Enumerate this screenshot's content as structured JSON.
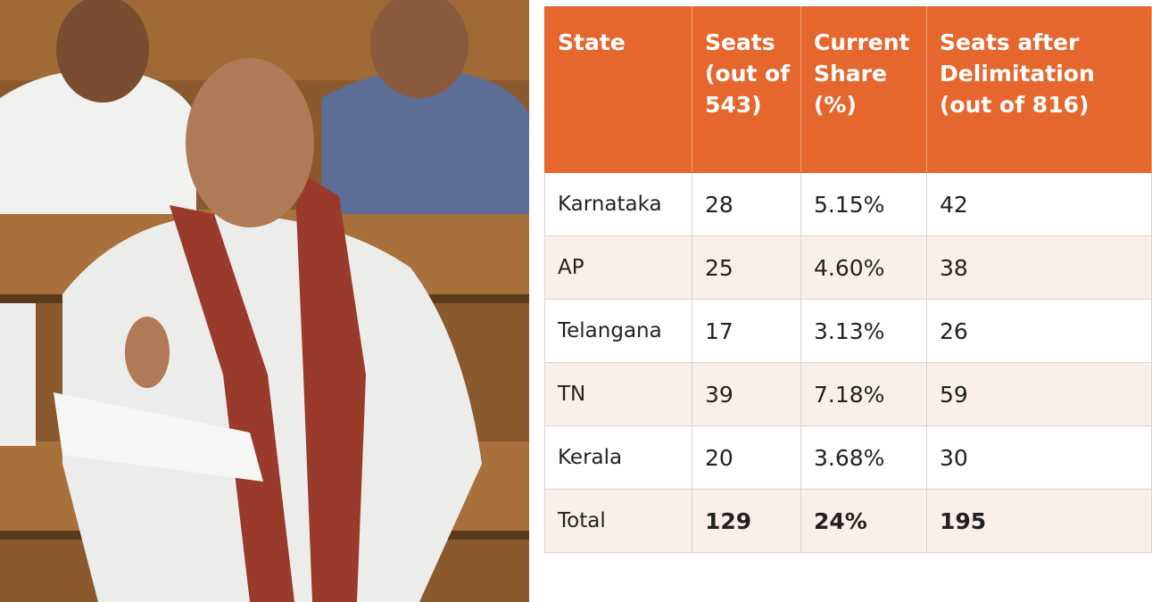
{
  "table": {
    "header": [
      "State",
      "Seats (out of 543)",
      "Current Share (%)",
      "Seats after Delimitation (out of 816)"
    ],
    "rows": [
      [
        "Karnataka",
        "28",
        "5.15%",
        "42"
      ],
      [
        "AP",
        "25",
        "4.60%",
        "38"
      ],
      [
        "Telangana",
        "17",
        "3.13%",
        "26"
      ],
      [
        "TN",
        "39",
        "7.18%",
        "59"
      ],
      [
        "Kerala",
        "20",
        "3.68%",
        "30"
      ],
      [
        "Total",
        "129",
        "24%",
        "195"
      ]
    ]
  }
}
